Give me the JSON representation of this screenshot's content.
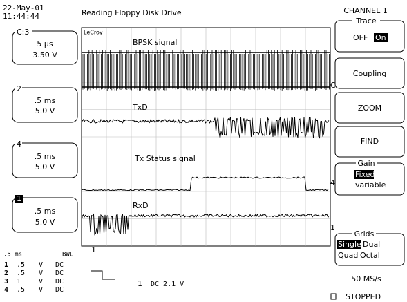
{
  "header": {
    "date": "22-May-01",
    "time": "11:44:44",
    "title": "Reading Floppy Disk Drive",
    "channel": "CHANNEL 1"
  },
  "channels": [
    {
      "id": "C:3",
      "timebase": "5 µs",
      "volts": "3.50 V"
    },
    {
      "id": "2",
      "timebase": ".5 ms",
      "volts": "5.0 V"
    },
    {
      "id": "4",
      "timebase": ".5 ms",
      "volts": "5.0 V"
    },
    {
      "id": "1",
      "timebase": ".5 ms",
      "volts": "5.0 V"
    }
  ],
  "screen": {
    "logo": "LeCroy",
    "labels": [
      "BPSK signal",
      "TxD",
      "Tx Status signal",
      "RxD"
    ],
    "markers": [
      "C",
      "4",
      "1",
      "1"
    ]
  },
  "menu": {
    "trace": {
      "title": "Trace",
      "off": "OFF",
      "on": "On"
    },
    "coupling": "Coupling",
    "zoom": "ZOOM",
    "find": "FIND",
    "gain": {
      "title": "Gain",
      "fixed": "Fixed",
      "variable": "variable"
    },
    "grids": {
      "title": "Grids",
      "options": [
        "Single",
        "Dual",
        "Quad",
        "Octal"
      ]
    }
  },
  "status": {
    "timebase": ".5 ms",
    "bwl": "BWL",
    "rows": [
      [
        "1",
        ".5",
        "V",
        "DC"
      ],
      [
        "2",
        ".5",
        "V",
        "DC"
      ],
      [
        "3",
        "1",
        "V",
        "DC"
      ],
      [
        "4",
        ".5",
        "V",
        "DC"
      ]
    ],
    "trigger": {
      "channel": "1",
      "level": "DC 2.1 V"
    },
    "sample_rate": "50 MS/s",
    "state": "STOPPED"
  }
}
